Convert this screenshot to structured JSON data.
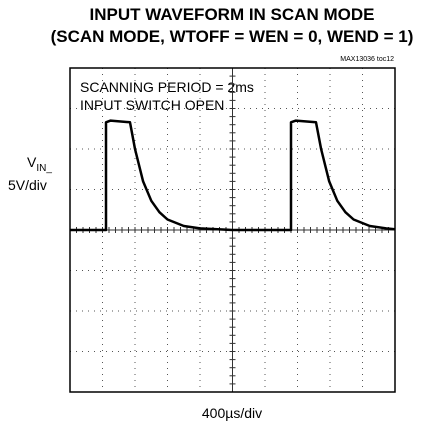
{
  "chart_data": {
    "type": "line",
    "title": "INPUT WAVEFORM IN SCAN MODE",
    "subtitle": "(SCAN MODE, WTOFF = WEN = 0, WEND = 1)",
    "figure_id": "MAX13036 toc12",
    "annotations": [
      "SCANNING PERIOD = 2ms",
      "INPUT SWITCH OPEN"
    ],
    "ylabel_main": "V",
    "ylabel_sub": "IN_",
    "ylabel_scale": "5V/div",
    "xlabel": "400µs/div",
    "xlim": [
      0,
      4000
    ],
    "ylim": [
      -20,
      20
    ],
    "grid": true,
    "series": [
      {
        "name": "VIN_",
        "color": "#000000",
        "x": [
          0,
          443,
          443,
          500,
          738,
          800,
          900,
          1000,
          1100,
          1200,
          1400,
          1600,
          2000,
          2720,
          2720,
          2780,
          3028,
          3090,
          3190,
          3290,
          3390,
          3490,
          3690,
          3890,
          4000
        ],
        "values": [
          0,
          0,
          13.3,
          13.5,
          13.3,
          10,
          6,
          3.6,
          2.2,
          1.3,
          0.5,
          0.2,
          0,
          0,
          13.3,
          13.5,
          13.3,
          10,
          6,
          3.6,
          2.2,
          1.3,
          0.5,
          0.2,
          0.1
        ]
      }
    ]
  }
}
